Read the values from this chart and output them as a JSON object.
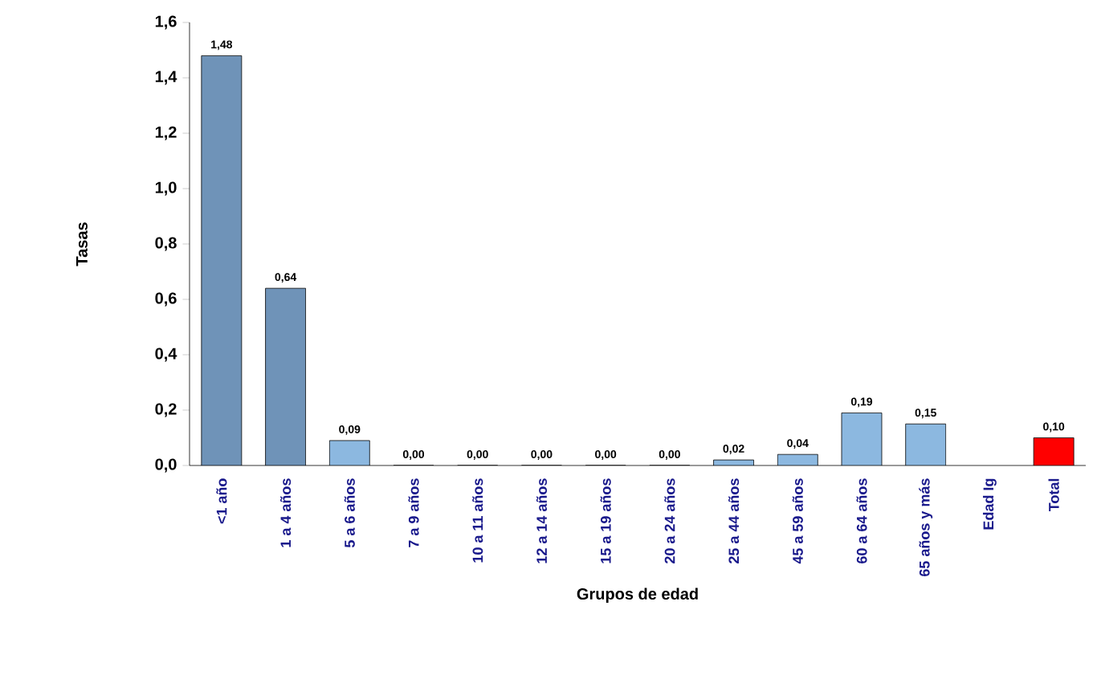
{
  "chart_data": {
    "type": "bar",
    "xlabel": "Grupos de edad",
    "ylabel": "Tasas",
    "categories": [
      "<1 año",
      "1 a 4 años",
      "5 a 6 años",
      "7 a 9 años",
      "10 a 11 años",
      "12 a 14 años",
      "15 a 19 años",
      "20 a 24 años",
      "25 a 44 años",
      "45 a 59 años",
      "60 a 64 años",
      "65 años y más",
      "Edad Ig",
      "Total"
    ],
    "values": [
      1.48,
      0.64,
      0.09,
      0,
      0,
      0,
      0,
      0,
      0.02,
      0.04,
      0.19,
      0.15,
      null,
      0.1
    ],
    "value_labels": [
      "1,48",
      "0,64",
      "0,09",
      "0,00",
      "0,00",
      "0,00",
      "0,00",
      "0,00",
      "0,02",
      "0,04",
      "0,19",
      "0,15",
      null,
      "0,10"
    ],
    "colors": [
      "#6f93b8",
      "#6f93b8",
      "#8cb8e0",
      "#8cb8e0",
      "#8cb8e0",
      "#8cb8e0",
      "#8cb8e0",
      "#8cb8e0",
      "#8cb8e0",
      "#8cb8e0",
      "#8cb8e0",
      "#8cb8e0",
      "#8cb8e0",
      "#ff0000"
    ],
    "ylim": [
      0,
      1.6
    ],
    "yticks": [
      {
        "value": 0,
        "label": "0,0"
      },
      {
        "value": 0.2,
        "label": "0,2"
      },
      {
        "value": 0.4,
        "label": "0,4"
      },
      {
        "value": 0.6,
        "label": "0,6"
      },
      {
        "value": 0.8,
        "label": "0,8"
      },
      {
        "value": 1.0,
        "label": "1,0"
      },
      {
        "value": 1.2,
        "label": "1,2"
      },
      {
        "value": 1.4,
        "label": "1,4"
      },
      {
        "value": 1.6,
        "label": "1,6"
      }
    ],
    "grid": false
  }
}
